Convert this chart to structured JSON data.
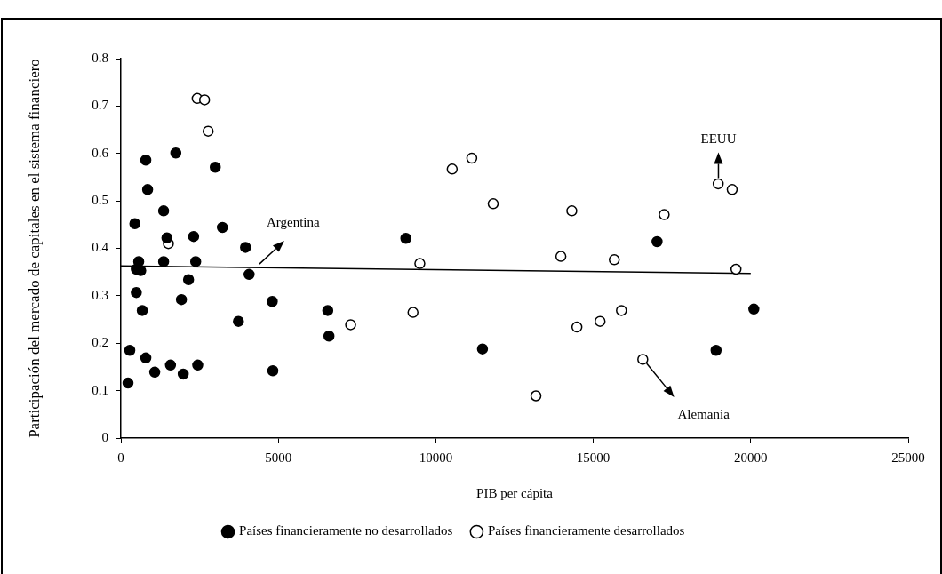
{
  "chart_data": {
    "type": "scatter",
    "xlabel": "PIB per cápita",
    "ylabel": "Participación del mercado de capitales en el sistema financiero",
    "xlim": [
      0,
      25000
    ],
    "xticks": [
      0,
      5000,
      10000,
      15000,
      20000,
      25000
    ],
    "ylim": [
      0,
      0.8
    ],
    "yticks": [
      0,
      0.1,
      0.2,
      0.3,
      0.4,
      0.5,
      0.6,
      0.7,
      0.8
    ],
    "grid": false,
    "legend": "bottom",
    "marker": "circle",
    "annotations": [
      {
        "text": "Argentina",
        "x": 4400,
        "y": 0.367
      },
      "EEUU",
      "Alemania"
    ],
    "series": [
      {
        "name": "Países financieramente no desarrollados",
        "color": "#000000",
        "x": [
          444,
          566,
          490,
          631,
          490,
          679,
          283,
          226,
          792,
          849,
          792,
          1075,
          1357,
          1462,
          1357,
          1575,
          1744,
          1923,
          1980,
          2149,
          2310,
          2376,
          2440,
          2998,
          3224,
          3959,
          4072,
          3733,
          4808,
          4826,
          9050,
          6570,
          6608,
          17025,
          11482,
          20099,
          18900
        ],
        "values": [
          0.452,
          0.372,
          0.356,
          0.353,
          0.307,
          0.269,
          0.185,
          0.116,
          0.586,
          0.524,
          0.169,
          0.139,
          0.479,
          0.422,
          0.372,
          0.154,
          0.601,
          0.292,
          0.135,
          0.334,
          0.425,
          0.372,
          0.154,
          0.571,
          0.444,
          0.402,
          0.345,
          0.246,
          0.288,
          0.142,
          0.421,
          0.269,
          0.215,
          0.414,
          0.188,
          0.272,
          0.185
        ]
      },
      {
        "name": "Países financieramente desarrollados",
        "color": "#ffffff",
        "x": [
          2423,
          2658,
          2771,
          1508,
          9493,
          9276,
          7296,
          10520,
          11143,
          11822,
          14318,
          13971,
          15667,
          17251,
          14480,
          15215,
          15894,
          16572,
          13179,
          18967,
          19411,
          19532
        ],
        "values": [
          0.716,
          0.713,
          0.647,
          0.41,
          0.368,
          0.265,
          0.239,
          0.567,
          0.59,
          0.494,
          0.479,
          0.383,
          0.376,
          0.471,
          0.234,
          0.246,
          0.269,
          0.166,
          0.089,
          0.536,
          0.524,
          0.356
        ]
      },
      {
        "type": "line",
        "color": "#000000",
        "marker": "none",
        "x": [
          0,
          20000
        ],
        "values": [
          0.363,
          0.347
        ]
      }
    ]
  }
}
